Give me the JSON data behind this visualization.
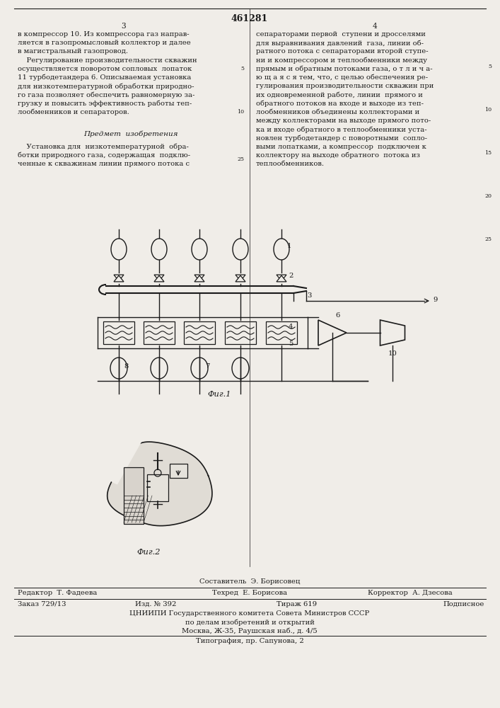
{
  "patent_number": "461281",
  "bg_color": "#f0ede8",
  "text_color": "#1a1a1a",
  "fig1_caption": "Фиг.1",
  "fig2_caption": "Фиг.2",
  "footer_sestavitel": "Составитель  Э. Борисовец",
  "footer_editor": "Редактор  Т. Фадеева",
  "footer_tech": "Техред  Е. Борисова",
  "footer_corrector": "Корректор  А. Дзесова",
  "footer_order": "Заказ 729/13",
  "footer_issue": "Изд. № 392",
  "footer_edition": "Тираж 619",
  "footer_subscription": "Подписное",
  "footer_org": "ЦНИИПИ Государственного комитета Совета Министров СССР",
  "footer_org2": "по делам изобретений и открытий",
  "footer_address": "Москва, Ж-35, Раушская наб., д. 4/5",
  "footer_print": "Типография, пр. Сапунова, 2"
}
